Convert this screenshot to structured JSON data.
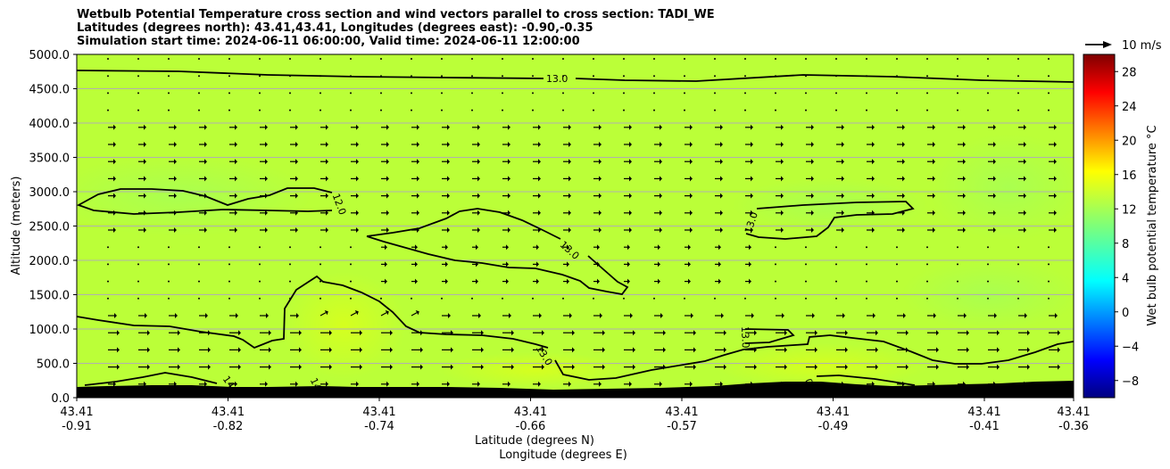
{
  "chart_data": {
    "type": "heatmap",
    "title_lines": [
      "Wetbulb Potential Temperature cross section and wind vectors parallel to cross section: TADI_WE",
      "Latitudes (degrees north): 43.41,43.41, Longitudes (degrees east): -0.90,-0.35",
      "Simulation start time: 2024-06-11 06:00:00, Valid time: 2024-06-11 12:00:00"
    ],
    "xlabel_lines": [
      "Latitude (degrees N)",
      "Longitude (degrees E)"
    ],
    "ylabel": "Altitude (meters)",
    "ylim": [
      0,
      5000
    ],
    "yticks": [
      "0.0",
      "500.0",
      "1000.0",
      "1500.0",
      "2000.0",
      "2500.0",
      "3000.0",
      "3500.0",
      "4000.0",
      "4500.0",
      "5000.0"
    ],
    "xticks_lat": [
      "43.41",
      "43.41",
      "43.41",
      "43.41",
      "43.41",
      "43.41",
      "43.41",
      "43.41"
    ],
    "xticks_lon": [
      "-0.91",
      "-0.82",
      "-0.74",
      "-0.66",
      "-0.57",
      "-0.49",
      "-0.41",
      "-0.36"
    ],
    "xlim_lon": [
      -0.91,
      -0.36
    ],
    "grid": "horizontal",
    "colorbar": {
      "label": "Wet bulb potential temperature °C",
      "range": [
        -10,
        30
      ],
      "ticks": [
        "−8",
        "−4",
        "0",
        "4",
        "8",
        "12",
        "16",
        "20",
        "24",
        "28"
      ],
      "colormap": "jet"
    },
    "reference_vector": {
      "label": "10 m/s"
    },
    "contour_labels": [
      {
        "text": "13.0",
        "lon": -0.645,
        "alt": 4650,
        "angle": 0
      },
      {
        "text": "12.0",
        "lon": -0.765,
        "alt": 2820,
        "angle": 70
      },
      {
        "text": "13.0",
        "lon": -0.638,
        "alt": 2150,
        "angle": 42
      },
      {
        "text": "13.0",
        "lon": -0.538,
        "alt": 2550,
        "angle": -72
      },
      {
        "text": "13.0",
        "lon": -0.541,
        "alt": 880,
        "angle": 88
      },
      {
        "text": "13.0",
        "lon": -0.652,
        "alt": 620,
        "angle": 58
      },
      {
        "text": "14",
        "lon": -0.826,
        "alt": 230,
        "angle": 55
      },
      {
        "text": "14",
        "lon": -0.778,
        "alt": 200,
        "angle": 65
      },
      {
        "text": "0",
        "lon": -0.506,
        "alt": 230,
        "angle": 70
      }
    ],
    "field_value_c": 13,
    "terrain": "black filled orography along the bottom, about 150–250 m"
  }
}
